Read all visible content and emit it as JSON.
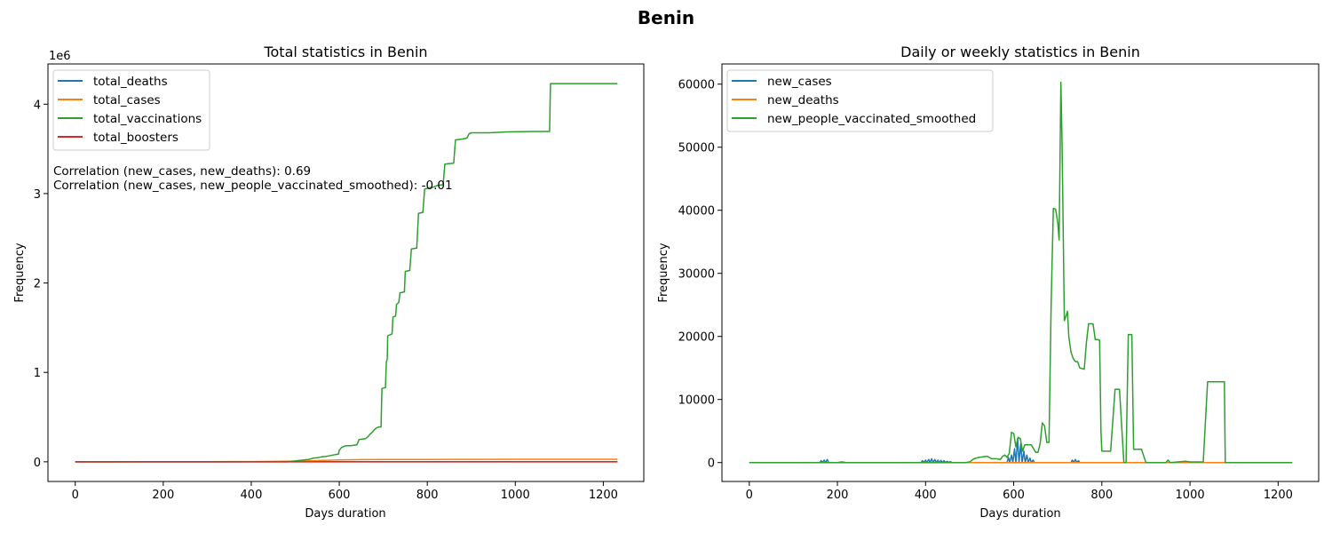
{
  "figure": {
    "title": "Benin"
  },
  "chart_data": [
    {
      "type": "line",
      "title": "Total statistics in Benin",
      "xlabel": "Days duration",
      "ylabel": "Frequency",
      "y_offset_label": "1e6",
      "xlim": [
        -62,
        1292
      ],
      "ylim": [
        -220000,
        4450000
      ],
      "xticks": [
        0,
        200,
        400,
        600,
        800,
        1000,
        1200
      ],
      "xtick_labels": [
        "0",
        "200",
        "400",
        "600",
        "800",
        "1000",
        "1200"
      ],
      "yticks": [
        0,
        1000000,
        2000000,
        3000000,
        4000000
      ],
      "ytick_labels": [
        "0",
        "1",
        "2",
        "3",
        "4"
      ],
      "legend_position": "upper-left",
      "annotations": [
        "Correlation (new_cases, new_deaths): 0.69",
        "Correlation (new_cases, new_people_vaccinated_smoothed): -0.01"
      ],
      "series": [
        {
          "name": "total_deaths",
          "color": "#1f77b4",
          "points": [
            [
              0,
              0
            ],
            [
              200,
              50
            ],
            [
              400,
              100
            ],
            [
              600,
              150
            ],
            [
              800,
              160
            ],
            [
              1000,
              163
            ],
            [
              1232,
              163
            ]
          ]
        },
        {
          "name": "total_cases",
          "color": "#ff7f0e",
          "points": [
            [
              0,
              0
            ],
            [
              150,
              200
            ],
            [
              300,
              1200
            ],
            [
              400,
              3000
            ],
            [
              500,
              8000
            ],
            [
              600,
              20000
            ],
            [
              650,
              24000
            ],
            [
              700,
              25500
            ],
            [
              800,
              26500
            ],
            [
              900,
              27800
            ],
            [
              1000,
              28000
            ],
            [
              1232,
              28000
            ]
          ]
        },
        {
          "name": "total_vaccinations",
          "color": "#2ca02c",
          "points": [
            [
              0,
              0
            ],
            [
              480,
              0
            ],
            [
              490,
              5000
            ],
            [
              500,
              10000
            ],
            [
              510,
              15000
            ],
            [
              520,
              20000
            ],
            [
              530,
              25000
            ],
            [
              540,
              40000
            ],
            [
              550,
              45000
            ],
            [
              560,
              55000
            ],
            [
              570,
              60000
            ],
            [
              580,
              70000
            ],
            [
              590,
              80000
            ],
            [
              598,
              85000
            ],
            [
              600,
              130000
            ],
            [
              605,
              160000
            ],
            [
              610,
              170000
            ],
            [
              615,
              180000
            ],
            [
              625,
              180000
            ],
            [
              640,
              190000
            ],
            [
              645,
              250000
            ],
            [
              660,
              260000
            ],
            [
              665,
              280000
            ],
            [
              670,
              310000
            ],
            [
              675,
              330000
            ],
            [
              680,
              360000
            ],
            [
              685,
              380000
            ],
            [
              690,
              390000
            ],
            [
              695,
              390000
            ],
            [
              697,
              820000
            ],
            [
              705,
              830000
            ],
            [
              707,
              1120000
            ],
            [
              709,
              1150000
            ],
            [
              710,
              1410000
            ],
            [
              715,
              1420000
            ],
            [
              720,
              1430000
            ],
            [
              722,
              1620000
            ],
            [
              728,
              1630000
            ],
            [
              730,
              1760000
            ],
            [
              735,
              1780000
            ],
            [
              738,
              1890000
            ],
            [
              748,
              1900000
            ],
            [
              750,
              2130000
            ],
            [
              760,
              2140000
            ],
            [
              764,
              2380000
            ],
            [
              776,
              2390000
            ],
            [
              780,
              2780000
            ],
            [
              790,
              2790000
            ],
            [
              794,
              3050000
            ],
            [
              800,
              3060000
            ],
            [
              812,
              3070000
            ],
            [
              822,
              3090000
            ],
            [
              836,
              3100000
            ],
            [
              840,
              3330000
            ],
            [
              860,
              3340000
            ],
            [
              864,
              3600000
            ],
            [
              880,
              3610000
            ],
            [
              890,
              3620000
            ],
            [
              895,
              3670000
            ],
            [
              900,
              3680000
            ],
            [
              940,
              3680000
            ],
            [
              980,
              3690000
            ],
            [
              1040,
              3695000
            ],
            [
              1078,
              3695000
            ],
            [
              1080,
              4230000
            ],
            [
              1232,
              4230000
            ]
          ]
        },
        {
          "name": "total_boosters",
          "color": "#d62728",
          "points": [
            [
              0,
              0
            ],
            [
              1232,
              0
            ]
          ]
        }
      ]
    },
    {
      "type": "line",
      "title": "Daily or weekly statistics in Benin",
      "xlabel": "Days duration",
      "ylabel": "Frequency",
      "xlim": [
        -62,
        1292
      ],
      "ylim": [
        -3000,
        63200
      ],
      "xticks": [
        0,
        200,
        400,
        600,
        800,
        1000,
        1200
      ],
      "xtick_labels": [
        "0",
        "200",
        "400",
        "600",
        "800",
        "1000",
        "1200"
      ],
      "yticks": [
        0,
        10000,
        20000,
        30000,
        40000,
        50000,
        60000
      ],
      "ytick_labels": [
        "0",
        "10000",
        "20000",
        "30000",
        "40000",
        "50000",
        "60000"
      ],
      "legend_position": "upper-left",
      "series": [
        {
          "name": "new_cases",
          "color": "#1f77b4",
          "points": [
            [
              0,
              0
            ],
            [
              160,
              0
            ],
            [
              163,
              300
            ],
            [
              166,
              0
            ],
            [
              170,
              400
            ],
            [
              173,
              0
            ],
            [
              177,
              500
            ],
            [
              180,
              0
            ],
            [
              200,
              0
            ],
            [
              210,
              100
            ],
            [
              220,
              0
            ],
            [
              390,
              0
            ],
            [
              393,
              300
            ],
            [
              396,
              0
            ],
            [
              400,
              400
            ],
            [
              403,
              0
            ],
            [
              407,
              500
            ],
            [
              410,
              0
            ],
            [
              414,
              600
            ],
            [
              417,
              0
            ],
            [
              421,
              500
            ],
            [
              424,
              0
            ],
            [
              428,
              400
            ],
            [
              431,
              0
            ],
            [
              435,
              350
            ],
            [
              438,
              0
            ],
            [
              442,
              300
            ],
            [
              445,
              0
            ],
            [
              449,
              200
            ],
            [
              452,
              0
            ],
            [
              456,
              150
            ],
            [
              460,
              0
            ],
            [
              585,
              0
            ],
            [
              588,
              800
            ],
            [
              591,
              0
            ],
            [
              595,
              1200
            ],
            [
              598,
              0
            ],
            [
              602,
              2200
            ],
            [
              605,
              0
            ],
            [
              609,
              3800
            ],
            [
              612,
              0
            ],
            [
              616,
              3000
            ],
            [
              619,
              0
            ],
            [
              623,
              1800
            ],
            [
              626,
              0
            ],
            [
              630,
              1200
            ],
            [
              633,
              0
            ],
            [
              637,
              700
            ],
            [
              640,
              0
            ],
            [
              644,
              400
            ],
            [
              647,
              0
            ],
            [
              730,
              0
            ],
            [
              733,
              400
            ],
            [
              736,
              0
            ],
            [
              740,
              500
            ],
            [
              743,
              0
            ],
            [
              747,
              300
            ],
            [
              750,
              0
            ],
            [
              1232,
              0
            ]
          ]
        },
        {
          "name": "new_deaths",
          "color": "#ff7f0e",
          "points": [
            [
              0,
              0
            ],
            [
              1232,
              0
            ]
          ]
        },
        {
          "name": "new_people_vaccinated_smoothed",
          "color": "#2ca02c",
          "points": [
            [
              0,
              0
            ],
            [
              490,
              0
            ],
            [
              500,
              100
            ],
            [
              510,
              600
            ],
            [
              520,
              800
            ],
            [
              530,
              900
            ],
            [
              540,
              1000
            ],
            [
              550,
              600
            ],
            [
              560,
              600
            ],
            [
              570,
              500
            ],
            [
              575,
              1000
            ],
            [
              580,
              1200
            ],
            [
              585,
              800
            ],
            [
              590,
              1500
            ],
            [
              595,
              4800
            ],
            [
              600,
              4600
            ],
            [
              605,
              2500
            ],
            [
              610,
              4000
            ],
            [
              615,
              3800
            ],
            [
              620,
              1800
            ],
            [
              625,
              2800
            ],
            [
              630,
              2800
            ],
            [
              640,
              2800
            ],
            [
              645,
              2200
            ],
            [
              650,
              1600
            ],
            [
              655,
              1600
            ],
            [
              660,
              3000
            ],
            [
              665,
              6300
            ],
            [
              670,
              5800
            ],
            [
              675,
              3200
            ],
            [
              680,
              3200
            ],
            [
              685,
              25000
            ],
            [
              690,
              40300
            ],
            [
              695,
              40200
            ],
            [
              700,
              38000
            ],
            [
              703,
              35300
            ],
            [
              707,
              60300
            ],
            [
              710,
              50000
            ],
            [
              715,
              22500
            ],
            [
              720,
              23500
            ],
            [
              722,
              24000
            ],
            [
              725,
              20000
            ],
            [
              730,
              17500
            ],
            [
              735,
              16500
            ],
            [
              740,
              16000
            ],
            [
              745,
              16000
            ],
            [
              750,
              15000
            ],
            [
              760,
              14800
            ],
            [
              765,
              19000
            ],
            [
              770,
              22000
            ],
            [
              780,
              22000
            ],
            [
              785,
              19500
            ],
            [
              790,
              19500
            ],
            [
              795,
              19400
            ],
            [
              798,
              5000
            ],
            [
              800,
              1800
            ],
            [
              820,
              1800
            ],
            [
              830,
              11600
            ],
            [
              840,
              11600
            ],
            [
              850,
              0
            ],
            [
              855,
              0
            ],
            [
              860,
              20300
            ],
            [
              868,
              20300
            ],
            [
              872,
              2100
            ],
            [
              890,
              2100
            ],
            [
              900,
              0
            ],
            [
              945,
              0
            ],
            [
              950,
              400
            ],
            [
              955,
              0
            ],
            [
              990,
              200
            ],
            [
              1000,
              100
            ],
            [
              1030,
              100
            ],
            [
              1040,
              12800
            ],
            [
              1078,
              12800
            ],
            [
              1080,
              0
            ],
            [
              1232,
              0
            ]
          ]
        }
      ]
    }
  ]
}
